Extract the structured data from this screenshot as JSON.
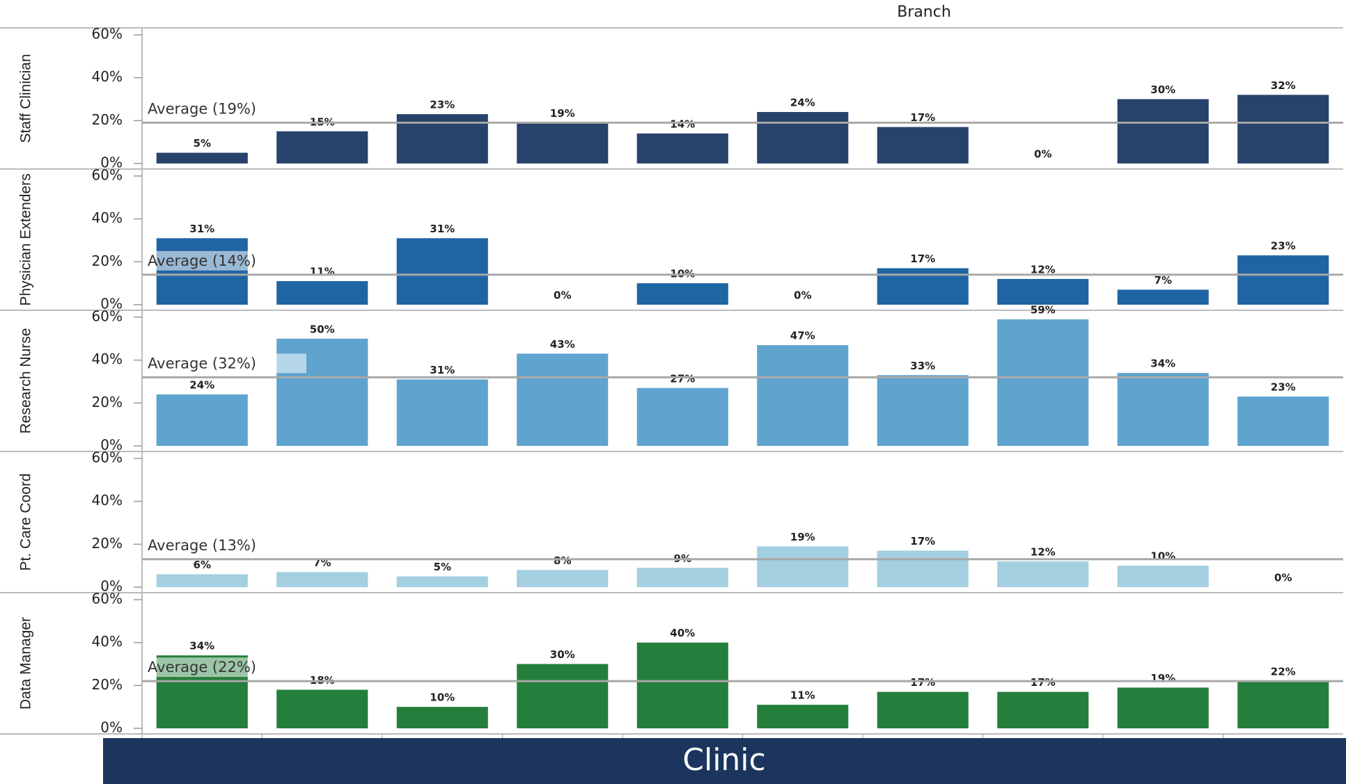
{
  "header": "Branch",
  "footer": "Clinic",
  "chart_data": [
    {
      "type": "bar",
      "ylabel": "Staff Clinician",
      "color": "#27426b",
      "categories": [
        null,
        null,
        null,
        null,
        null,
        null,
        null,
        null,
        null,
        null
      ],
      "values": [
        5,
        15,
        23,
        19,
        14,
        24,
        17,
        0,
        30,
        32
      ],
      "value_labels": [
        "5%",
        "15%",
        "23%",
        "19%",
        "14%",
        "24%",
        "17%",
        "0%",
        "30%",
        "32%"
      ],
      "average": {
        "value": 19,
        "label": "Average (19%)"
      },
      "ylim": [
        0,
        60
      ],
      "yticks": [
        {
          "value": 0,
          "label": "0%"
        },
        {
          "value": 20,
          "label": "20%"
        },
        {
          "value": 40,
          "label": "40%"
        },
        {
          "value": 60,
          "label": "60%"
        }
      ]
    },
    {
      "type": "bar",
      "ylabel": "Physician Extenders",
      "color": "#1f65a3",
      "categories": [
        null,
        null,
        null,
        null,
        null,
        null,
        null,
        null,
        null,
        null
      ],
      "values": [
        31,
        11,
        31,
        0,
        10,
        0,
        17,
        12,
        7,
        23
      ],
      "value_labels": [
        "31%",
        "11%",
        "31%",
        "0%",
        "10%",
        "0%",
        "17%",
        "12%",
        "7%",
        "23%"
      ],
      "average": {
        "value": 14,
        "label": "Average (14%)"
      },
      "ylim": [
        0,
        60
      ],
      "yticks": [
        {
          "value": 0,
          "label": "0%"
        },
        {
          "value": 20,
          "label": "20%"
        },
        {
          "value": 40,
          "label": "40%"
        },
        {
          "value": 60,
          "label": "60%"
        }
      ]
    },
    {
      "type": "bar",
      "ylabel": "Research Nurse",
      "color": "#5ea4cf",
      "categories": [
        null,
        null,
        null,
        null,
        null,
        null,
        null,
        null,
        null,
        null
      ],
      "values": [
        24,
        50,
        31,
        43,
        27,
        47,
        33,
        59,
        34,
        23
      ],
      "value_labels": [
        "24%",
        "50%",
        "31%",
        "43%",
        "27%",
        "47%",
        "33%",
        "59%",
        "34%",
        "23%"
      ],
      "average": {
        "value": 32,
        "label": "Average (32%)"
      },
      "ylim": [
        0,
        60
      ],
      "yticks": [
        {
          "value": 0,
          "label": "0%"
        },
        {
          "value": 20,
          "label": "20%"
        },
        {
          "value": 40,
          "label": "40%"
        },
        {
          "value": 60,
          "label": "60%"
        }
      ]
    },
    {
      "type": "bar",
      "ylabel": "Pt. Care Coord",
      "color": "#a3cfe0",
      "categories": [
        null,
        null,
        null,
        null,
        null,
        null,
        null,
        null,
        null,
        null
      ],
      "values": [
        6,
        7,
        5,
        8,
        9,
        19,
        17,
        12,
        10,
        0
      ],
      "value_labels": [
        "6%",
        "7%",
        "5%",
        "8%",
        "9%",
        "19%",
        "17%",
        "12%",
        "10%",
        "0%"
      ],
      "average": {
        "value": 13,
        "label": "Average (13%)"
      },
      "ylim": [
        0,
        60
      ],
      "yticks": [
        {
          "value": 0,
          "label": "0%"
        },
        {
          "value": 20,
          "label": "20%"
        },
        {
          "value": 40,
          "label": "40%"
        },
        {
          "value": 60,
          "label": "60%"
        }
      ]
    },
    {
      "type": "bar",
      "ylabel": "Data Manager",
      "color": "#257f3c",
      "categories": [
        null,
        null,
        null,
        null,
        null,
        null,
        null,
        null,
        null,
        null
      ],
      "values": [
        34,
        18,
        10,
        30,
        40,
        11,
        17,
        17,
        19,
        22
      ],
      "value_labels": [
        "34%",
        "18%",
        "10%",
        "30%",
        "40%",
        "11%",
        "17%",
        "17%",
        "19%",
        "22%"
      ],
      "average": {
        "value": 22,
        "label": "Average (22%)"
      },
      "ylim": [
        0,
        60
      ],
      "yticks": [
        {
          "value": 0,
          "label": "0%"
        },
        {
          "value": 20,
          "label": "20%"
        },
        {
          "value": 40,
          "label": "40%"
        },
        {
          "value": 60,
          "label": "60%"
        }
      ]
    }
  ]
}
